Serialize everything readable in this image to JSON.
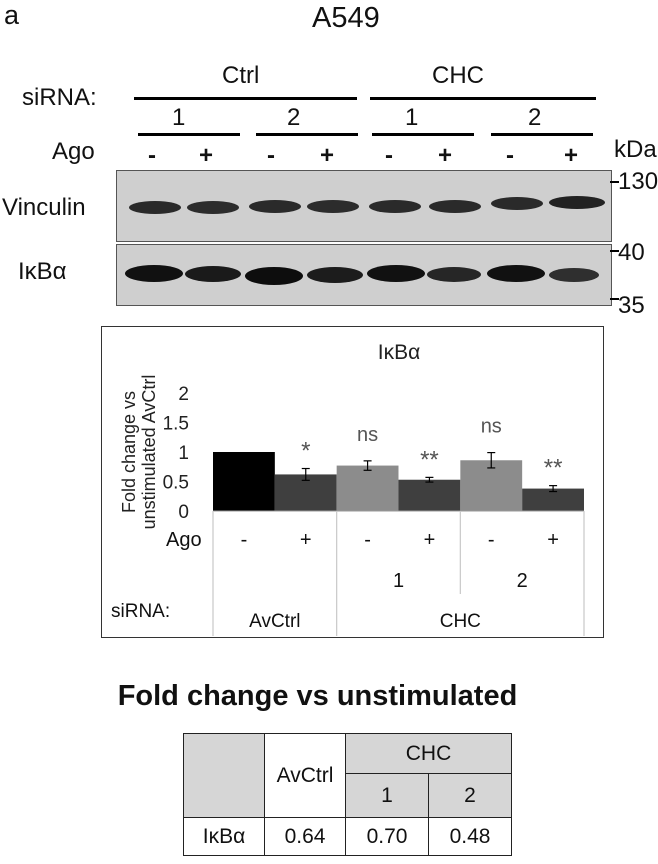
{
  "panel_letter": "a",
  "cell_line": "A549",
  "blot": {
    "sirna_label": "siRNA:",
    "ago_label": "Ago",
    "kda_label": "kDa",
    "groups": [
      "Ctrl",
      "CHC"
    ],
    "subgroups": [
      "1",
      "2",
      "1",
      "2"
    ],
    "lane_signs": [
      "-",
      "+",
      "-",
      "+",
      "-",
      "+",
      "-",
      "+"
    ],
    "rows": [
      {
        "label": "Vinculin",
        "markers": [
          "130"
        ]
      },
      {
        "label": "IκBα",
        "markers": [
          "40",
          "35"
        ]
      }
    ]
  },
  "chart_data": {
    "type": "bar",
    "title": "IκBα",
    "ylabel": "Fold change vs unstimulated AvCtrl",
    "ylim": [
      0,
      2
    ],
    "yticks": [
      "0",
      "0.5",
      "1",
      "1.5",
      "2"
    ],
    "ago_label": "Ago",
    "sirna_label": "siRNA:",
    "bars": [
      {
        "ago": "-",
        "value": 1.0,
        "error": 0.0,
        "color": "#000000",
        "sig": ""
      },
      {
        "ago": "+",
        "value": 0.62,
        "error": 0.1,
        "color": "#3f3f3f",
        "sig": "*"
      },
      {
        "ago": "-",
        "value": 0.77,
        "error": 0.08,
        "color": "#8c8c8c",
        "sig": "ns"
      },
      {
        "ago": "+",
        "value": 0.53,
        "error": 0.04,
        "color": "#3f3f3f",
        "sig": "**"
      },
      {
        "ago": "-",
        "value": 0.86,
        "error": 0.13,
        "color": "#8c8c8c",
        "sig": "ns"
      },
      {
        "ago": "+",
        "value": 0.38,
        "error": 0.05,
        "color": "#3f3f3f",
        "sig": "**"
      }
    ],
    "subgroup_labels": [
      "",
      "1",
      "2"
    ],
    "group_labels": [
      "AvCtrl",
      "CHC"
    ]
  },
  "table": {
    "title": "Fold change vs unstimulated",
    "avctrl": "AvCtrl",
    "chc": "CHC",
    "sub1": "1",
    "sub2": "2",
    "row_label": "IκBα",
    "values": [
      "0.64",
      "0.70",
      "0.48"
    ]
  }
}
